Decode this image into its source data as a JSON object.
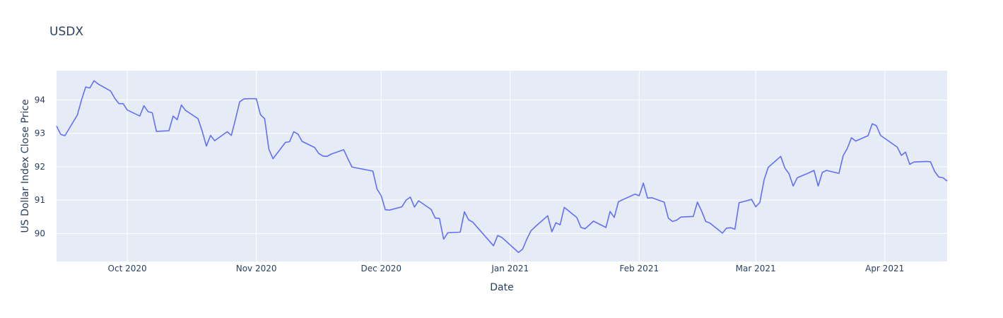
{
  "chart_data": {
    "type": "line",
    "title": "USDX",
    "xlabel": "Date",
    "ylabel": "US Dollar Index Close Price",
    "x_range": [
      "2020-09-14",
      "2021-04-16"
    ],
    "ylim": [
      89.16,
      94.88
    ],
    "grid": true,
    "x_ticks": [
      {
        "date": "2020-10-01",
        "label": "Oct 2020"
      },
      {
        "date": "2020-11-01",
        "label": "Nov 2020"
      },
      {
        "date": "2020-12-01",
        "label": "Dec 2020"
      },
      {
        "date": "2021-01-01",
        "label": "Jan 2021"
      },
      {
        "date": "2021-02-01",
        "label": "Feb 2021"
      },
      {
        "date": "2021-03-01",
        "label": "Mar 2021"
      },
      {
        "date": "2021-04-01",
        "label": "Apr 2021"
      }
    ],
    "y_ticks": [
      90,
      91,
      92,
      93,
      94
    ],
    "series": [
      {
        "color": "#636efa",
        "x": [
          "2020-09-14",
          "2020-09-15",
          "2020-09-16",
          "2020-09-19",
          "2020-09-20",
          "2020-09-21",
          "2020-09-22",
          "2020-09-23",
          "2020-09-24",
          "2020-09-27",
          "2020-09-28",
          "2020-09-29",
          "2020-09-30",
          "2020-10-01",
          "2020-10-04",
          "2020-10-05",
          "2020-10-06",
          "2020-10-07",
          "2020-10-08",
          "2020-10-11",
          "2020-10-12",
          "2020-10-13",
          "2020-10-14",
          "2020-10-15",
          "2020-10-18",
          "2020-10-19",
          "2020-10-20",
          "2020-10-21",
          "2020-10-22",
          "2020-10-25",
          "2020-10-26",
          "2020-10-27",
          "2020-10-28",
          "2020-10-29",
          "2020-10-30",
          "2020-11-01",
          "2020-11-02",
          "2020-11-03",
          "2020-11-04",
          "2020-11-05",
          "2020-11-08",
          "2020-11-09",
          "2020-11-10",
          "2020-11-11",
          "2020-11-12",
          "2020-11-15",
          "2020-11-16",
          "2020-11-17",
          "2020-11-18",
          "2020-11-19",
          "2020-11-22",
          "2020-11-23",
          "2020-11-24",
          "2020-11-29",
          "2020-11-30",
          "2020-12-01",
          "2020-12-02",
          "2020-12-03",
          "2020-12-06",
          "2020-12-07",
          "2020-12-08",
          "2020-12-09",
          "2020-12-10",
          "2020-12-13",
          "2020-12-14",
          "2020-12-15",
          "2020-12-16",
          "2020-12-17",
          "2020-12-20",
          "2020-12-21",
          "2020-12-22",
          "2020-12-23",
          "2020-12-28",
          "2020-12-29",
          "2020-12-30",
          "2021-01-03",
          "2021-01-04",
          "2021-01-05",
          "2021-01-06",
          "2021-01-07",
          "2021-01-10",
          "2021-01-11",
          "2021-01-12",
          "2021-01-13",
          "2021-01-14",
          "2021-01-17",
          "2021-01-18",
          "2021-01-19",
          "2021-01-20",
          "2021-01-21",
          "2021-01-24",
          "2021-01-25",
          "2021-01-26",
          "2021-01-27",
          "2021-01-28",
          "2021-01-31",
          "2021-02-01",
          "2021-02-02",
          "2021-02-03",
          "2021-02-04",
          "2021-02-07",
          "2021-02-08",
          "2021-02-09",
          "2021-02-10",
          "2021-02-11",
          "2021-02-14",
          "2021-02-15",
          "2021-02-16",
          "2021-02-17",
          "2021-02-18",
          "2021-02-21",
          "2021-02-22",
          "2021-02-23",
          "2021-02-24",
          "2021-02-25",
          "2021-02-28",
          "2021-03-01",
          "2021-03-02",
          "2021-03-03",
          "2021-03-04",
          "2021-03-07",
          "2021-03-08",
          "2021-03-09",
          "2021-03-10",
          "2021-03-11",
          "2021-03-14",
          "2021-03-15",
          "2021-03-16",
          "2021-03-17",
          "2021-03-18",
          "2021-03-21",
          "2021-03-22",
          "2021-03-23",
          "2021-03-24",
          "2021-03-25",
          "2021-03-28",
          "2021-03-29",
          "2021-03-30",
          "2021-03-31",
          "2021-04-04",
          "2021-04-05",
          "2021-04-06",
          "2021-04-07",
          "2021-04-08",
          "2021-04-11",
          "2021-04-12",
          "2021-04-13",
          "2021-04-14",
          "2021-04-15",
          "2021-04-16"
        ],
        "y": [
          93.22,
          92.97,
          92.93,
          93.55,
          94.0,
          94.39,
          94.36,
          94.58,
          94.48,
          94.27,
          94.05,
          93.89,
          93.89,
          93.7,
          93.52,
          93.83,
          93.65,
          93.62,
          93.06,
          93.08,
          93.52,
          93.41,
          93.85,
          93.69,
          93.44,
          93.06,
          92.62,
          92.94,
          92.78,
          93.05,
          92.94,
          93.43,
          93.95,
          94.03,
          94.04,
          94.04,
          93.56,
          93.44,
          92.53,
          92.24,
          92.73,
          92.75,
          93.05,
          92.98,
          92.76,
          92.58,
          92.4,
          92.32,
          92.31,
          92.38,
          92.51,
          92.24,
          91.99,
          91.87,
          91.33,
          91.13,
          90.71,
          90.7,
          90.8,
          91.0,
          91.09,
          90.79,
          90.98,
          90.72,
          90.46,
          90.45,
          89.83,
          90.02,
          90.04,
          90.65,
          90.41,
          90.34,
          89.63,
          89.94,
          89.88,
          89.43,
          89.53,
          89.83,
          90.08,
          90.2,
          90.53,
          90.05,
          90.32,
          90.26,
          90.78,
          90.48,
          90.18,
          90.14,
          90.25,
          90.37,
          90.18,
          90.66,
          90.48,
          90.95,
          91.01,
          91.18,
          91.13,
          91.51,
          91.06,
          91.07,
          90.94,
          90.46,
          90.36,
          90.4,
          90.49,
          90.51,
          90.94,
          90.67,
          90.36,
          90.31,
          90.01,
          90.16,
          90.17,
          90.13,
          90.92,
          91.02,
          90.8,
          90.93,
          91.6,
          91.98,
          92.31,
          91.96,
          91.79,
          91.42,
          91.67,
          91.83,
          91.89,
          91.42,
          91.83,
          91.89,
          91.8,
          92.33,
          92.55,
          92.87,
          92.77,
          92.93,
          93.29,
          93.23,
          92.94,
          92.59,
          92.34,
          92.44,
          92.07,
          92.14,
          92.16,
          92.15,
          91.86,
          91.69,
          91.67,
          91.57
        ]
      }
    ]
  }
}
